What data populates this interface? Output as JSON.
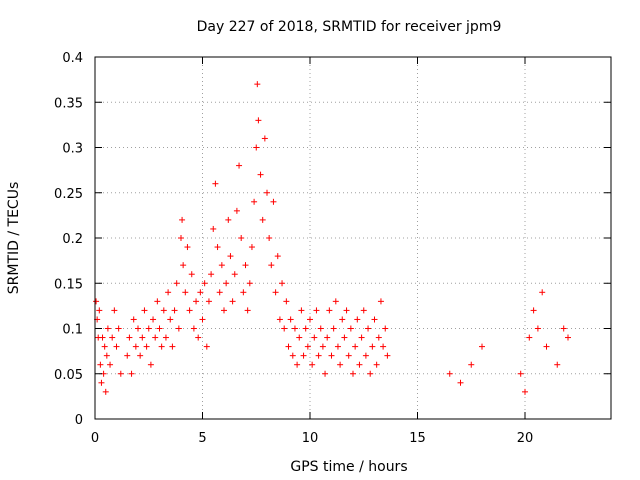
{
  "chart_data": {
    "type": "scatter",
    "title": "Day 227 of 2018, SRMTID for receiver jpm9",
    "xlabel": "GPS time / hours",
    "ylabel": "SRMTID / TECUs",
    "xlim": [
      0,
      24
    ],
    "ylim": [
      0,
      0.4
    ],
    "x_ticks": [
      0,
      5,
      10,
      15,
      20
    ],
    "x_tick_labels": [
      "0",
      "5",
      "10",
      "15",
      "20"
    ],
    "y_ticks": [
      0,
      0.05,
      0.1,
      0.15,
      0.2,
      0.25,
      0.3,
      0.35,
      0.4
    ],
    "y_tick_labels": [
      "0",
      "0.05",
      "0.1",
      "0.15",
      "0.2",
      "0.25",
      "0.3",
      "0.35",
      "0.4"
    ],
    "grid": true,
    "marker": "+",
    "color": "#ff0000",
    "series": [
      {
        "name": "SRMTID",
        "points": [
          [
            0.05,
            0.13
          ],
          [
            0.1,
            0.11
          ],
          [
            0.15,
            0.09
          ],
          [
            0.2,
            0.12
          ],
          [
            0.25,
            0.06
          ],
          [
            0.3,
            0.04
          ],
          [
            0.35,
            0.09
          ],
          [
            0.4,
            0.05
          ],
          [
            0.45,
            0.08
          ],
          [
            0.5,
            0.03
          ],
          [
            0.55,
            0.07
          ],
          [
            0.6,
            0.1
          ],
          [
            0.7,
            0.06
          ],
          [
            0.8,
            0.09
          ],
          [
            0.9,
            0.12
          ],
          [
            1.0,
            0.08
          ],
          [
            1.1,
            0.1
          ],
          [
            1.2,
            0.05
          ],
          [
            1.5,
            0.07
          ],
          [
            1.6,
            0.09
          ],
          [
            1.7,
            0.05
          ],
          [
            1.8,
            0.11
          ],
          [
            1.9,
            0.08
          ],
          [
            2.0,
            0.1
          ],
          [
            2.1,
            0.07
          ],
          [
            2.2,
            0.09
          ],
          [
            2.3,
            0.12
          ],
          [
            2.4,
            0.08
          ],
          [
            2.5,
            0.1
          ],
          [
            2.6,
            0.06
          ],
          [
            2.7,
            0.11
          ],
          [
            2.8,
            0.09
          ],
          [
            2.9,
            0.13
          ],
          [
            3.0,
            0.1
          ],
          [
            3.1,
            0.08
          ],
          [
            3.2,
            0.12
          ],
          [
            3.3,
            0.09
          ],
          [
            3.4,
            0.14
          ],
          [
            3.5,
            0.11
          ],
          [
            3.6,
            0.08
          ],
          [
            3.7,
            0.12
          ],
          [
            3.8,
            0.15
          ],
          [
            3.9,
            0.1
          ],
          [
            4.0,
            0.2
          ],
          [
            4.05,
            0.22
          ],
          [
            4.1,
            0.17
          ],
          [
            4.2,
            0.14
          ],
          [
            4.3,
            0.19
          ],
          [
            4.4,
            0.12
          ],
          [
            4.5,
            0.16
          ],
          [
            4.6,
            0.1
          ],
          [
            4.7,
            0.13
          ],
          [
            4.8,
            0.09
          ],
          [
            4.9,
            0.14
          ],
          [
            5.0,
            0.11
          ],
          [
            5.1,
            0.15
          ],
          [
            5.2,
            0.08
          ],
          [
            5.3,
            0.13
          ],
          [
            5.4,
            0.16
          ],
          [
            5.5,
            0.21
          ],
          [
            5.6,
            0.26
          ],
          [
            5.7,
            0.19
          ],
          [
            5.8,
            0.14
          ],
          [
            5.9,
            0.17
          ],
          [
            6.0,
            0.12
          ],
          [
            6.1,
            0.15
          ],
          [
            6.2,
            0.22
          ],
          [
            6.3,
            0.18
          ],
          [
            6.4,
            0.13
          ],
          [
            6.5,
            0.16
          ],
          [
            6.6,
            0.23
          ],
          [
            6.7,
            0.28
          ],
          [
            6.8,
            0.2
          ],
          [
            6.9,
            0.14
          ],
          [
            7.0,
            0.17
          ],
          [
            7.1,
            0.12
          ],
          [
            7.2,
            0.15
          ],
          [
            7.3,
            0.19
          ],
          [
            7.4,
            0.24
          ],
          [
            7.5,
            0.3
          ],
          [
            7.55,
            0.37
          ],
          [
            7.6,
            0.33
          ],
          [
            7.7,
            0.27
          ],
          [
            7.8,
            0.22
          ],
          [
            7.9,
            0.31
          ],
          [
            8.0,
            0.25
          ],
          [
            8.1,
            0.2
          ],
          [
            8.2,
            0.17
          ],
          [
            8.3,
            0.24
          ],
          [
            8.4,
            0.14
          ],
          [
            8.5,
            0.18
          ],
          [
            8.6,
            0.11
          ],
          [
            8.7,
            0.15
          ],
          [
            8.8,
            0.1
          ],
          [
            8.9,
            0.13
          ],
          [
            9.0,
            0.08
          ],
          [
            9.1,
            0.11
          ],
          [
            9.2,
            0.07
          ],
          [
            9.3,
            0.1
          ],
          [
            9.4,
            0.06
          ],
          [
            9.5,
            0.09
          ],
          [
            9.6,
            0.12
          ],
          [
            9.7,
            0.07
          ],
          [
            9.8,
            0.1
          ],
          [
            9.9,
            0.08
          ],
          [
            10.0,
            0.11
          ],
          [
            10.1,
            0.06
          ],
          [
            10.2,
            0.09
          ],
          [
            10.3,
            0.12
          ],
          [
            10.4,
            0.07
          ],
          [
            10.5,
            0.1
          ],
          [
            10.6,
            0.08
          ],
          [
            10.7,
            0.05
          ],
          [
            10.8,
            0.09
          ],
          [
            10.9,
            0.12
          ],
          [
            11.0,
            0.07
          ],
          [
            11.1,
            0.1
          ],
          [
            11.2,
            0.13
          ],
          [
            11.3,
            0.08
          ],
          [
            11.4,
            0.06
          ],
          [
            11.5,
            0.11
          ],
          [
            11.6,
            0.09
          ],
          [
            11.7,
            0.12
          ],
          [
            11.8,
            0.07
          ],
          [
            11.9,
            0.1
          ],
          [
            12.0,
            0.05
          ],
          [
            12.1,
            0.08
          ],
          [
            12.2,
            0.11
          ],
          [
            12.3,
            0.06
          ],
          [
            12.4,
            0.09
          ],
          [
            12.5,
            0.12
          ],
          [
            12.6,
            0.07
          ],
          [
            12.7,
            0.1
          ],
          [
            12.8,
            0.05
          ],
          [
            12.9,
            0.08
          ],
          [
            13.0,
            0.11
          ],
          [
            13.1,
            0.06
          ],
          [
            13.2,
            0.09
          ],
          [
            13.3,
            0.13
          ],
          [
            13.4,
            0.08
          ],
          [
            13.5,
            0.1
          ],
          [
            13.6,
            0.07
          ],
          [
            16.5,
            0.05
          ],
          [
            17.0,
            0.04
          ],
          [
            17.5,
            0.06
          ],
          [
            18.0,
            0.08
          ],
          [
            19.8,
            0.05
          ],
          [
            20.0,
            0.03
          ],
          [
            20.2,
            0.09
          ],
          [
            20.4,
            0.12
          ],
          [
            20.6,
            0.1
          ],
          [
            20.8,
            0.14
          ],
          [
            21.0,
            0.08
          ],
          [
            21.5,
            0.06
          ],
          [
            21.8,
            0.1
          ],
          [
            22.0,
            0.09
          ]
        ]
      }
    ]
  }
}
